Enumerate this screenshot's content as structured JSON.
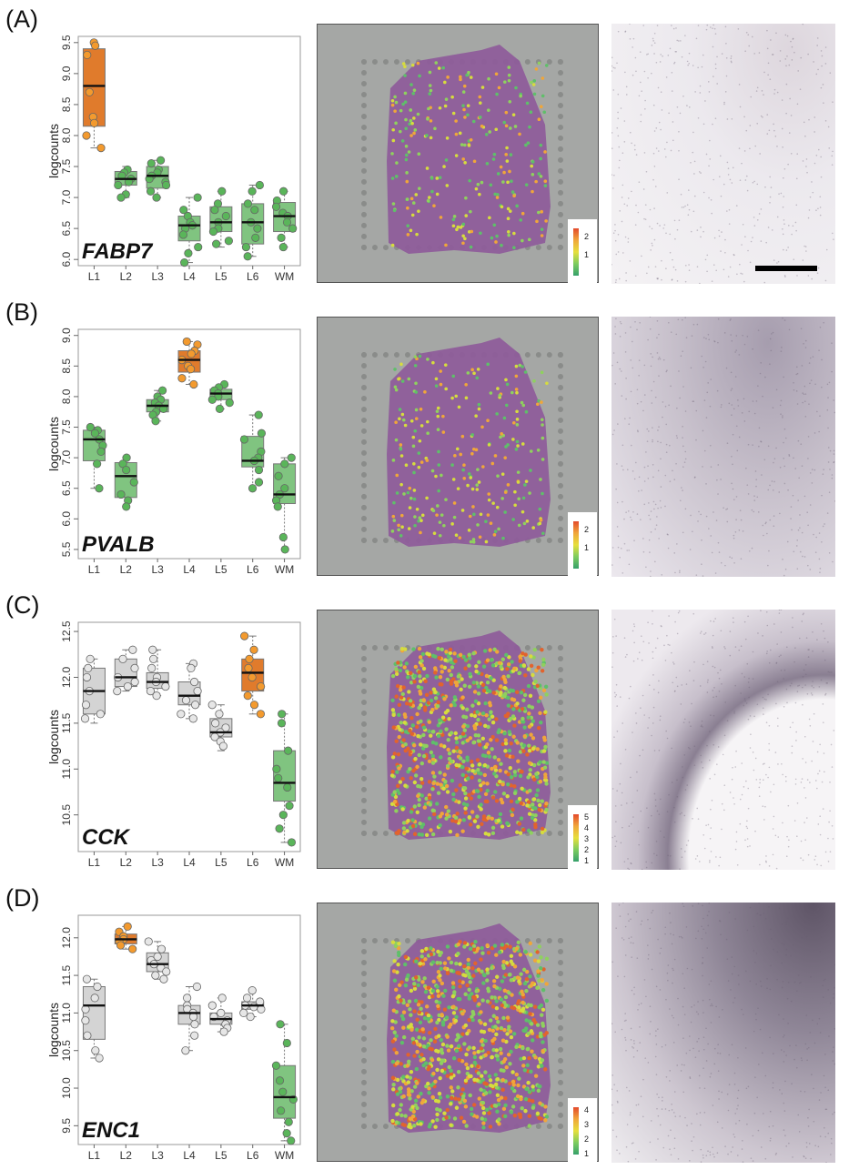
{
  "colors": {
    "orange": "#e07b2c",
    "orange_point": "#f39a2e",
    "green": "#80c480",
    "green_point": "#5ab55a",
    "grey": "#d4d4d4",
    "grey_point": "#e6e6e6"
  },
  "panels": [
    {
      "label": "(A)",
      "gene": "FABP7",
      "legend_ticks": [
        "2",
        "1"
      ],
      "histology": "light",
      "scale_bar": true
    },
    {
      "label": "(B)",
      "gene": "PVALB",
      "legend_ticks": [
        "2",
        "1"
      ],
      "histology": "mid",
      "scale_bar": false
    },
    {
      "label": "(C)",
      "gene": "CCK",
      "legend_ticks": [
        "5",
        "4",
        "3",
        "2",
        "1"
      ],
      "histology": "arc",
      "scale_bar": false
    },
    {
      "label": "(D)",
      "gene": "ENC1",
      "legend_ticks": [
        "4",
        "3",
        "2",
        "1"
      ],
      "histology": "dense",
      "scale_bar": false
    }
  ],
  "chart_data": [
    {
      "type": "box",
      "gene": "FABP7",
      "ylabel": "logcounts",
      "categories": [
        "L1",
        "L2",
        "L3",
        "L4",
        "L5",
        "L6",
        "WM"
      ],
      "yticks": [
        "6.0",
        "6.5",
        "7.0",
        "7.5",
        "8.0",
        "8.5",
        "9.0",
        "9.5"
      ],
      "ylim": [
        5.9,
        9.6
      ],
      "boxes": [
        {
          "q1": 8.15,
          "median": 8.8,
          "q3": 9.4,
          "lo": 7.8,
          "hi": 9.5,
          "fill": "orange",
          "points": [
            9.5,
            9.45,
            9.3,
            8.7,
            8.3,
            8.2,
            8.0,
            7.8
          ]
        },
        {
          "q1": 7.2,
          "median": 7.3,
          "q3": 7.42,
          "lo": 7.0,
          "hi": 7.5,
          "fill": "green",
          "points": [
            7.45,
            7.4,
            7.35,
            7.3,
            7.25,
            7.2,
            7.05,
            7.0
          ]
        },
        {
          "q1": 7.15,
          "median": 7.35,
          "q3": 7.5,
          "lo": 7.0,
          "hi": 7.6,
          "fill": "green",
          "points": [
            7.6,
            7.55,
            7.45,
            7.4,
            7.35,
            7.3,
            7.25,
            7.2,
            7.1,
            7.0
          ]
        },
        {
          "q1": 6.3,
          "median": 6.55,
          "q3": 6.7,
          "lo": 5.95,
          "hi": 7.0,
          "fill": "green",
          "points": [
            7.0,
            6.8,
            6.7,
            6.6,
            6.55,
            6.5,
            6.4,
            6.2,
            6.1,
            5.95
          ]
        },
        {
          "q1": 6.45,
          "median": 6.6,
          "q3": 6.85,
          "lo": 6.2,
          "hi": 7.1,
          "fill": "green",
          "points": [
            7.1,
            6.9,
            6.8,
            6.7,
            6.6,
            6.5,
            6.45,
            6.3,
            6.25
          ]
        },
        {
          "q1": 6.25,
          "median": 6.6,
          "q3": 6.9,
          "lo": 6.05,
          "hi": 7.2,
          "fill": "green",
          "points": [
            7.2,
            7.1,
            6.9,
            6.8,
            6.6,
            6.5,
            6.35,
            6.2,
            6.05
          ]
        },
        {
          "q1": 6.45,
          "median": 6.7,
          "q3": 6.92,
          "lo": 6.2,
          "hi": 7.1,
          "fill": "green",
          "points": [
            7.1,
            6.95,
            6.85,
            6.75,
            6.7,
            6.6,
            6.5,
            6.35,
            6.2
          ]
        }
      ]
    },
    {
      "type": "box",
      "gene": "PVALB",
      "ylabel": "logcounts",
      "categories": [
        "L1",
        "L2",
        "L3",
        "L4",
        "L5",
        "L6",
        "WM"
      ],
      "yticks": [
        "5.5",
        "6.0",
        "6.5",
        "7.0",
        "7.5",
        "8.0",
        "8.5",
        "9.0"
      ],
      "ylim": [
        5.35,
        9.1
      ],
      "boxes": [
        {
          "q1": 6.95,
          "median": 7.3,
          "q3": 7.45,
          "lo": 6.5,
          "hi": 7.5,
          "fill": "green",
          "points": [
            7.5,
            7.45,
            7.4,
            7.3,
            7.2,
            7.1,
            6.9,
            6.5
          ]
        },
        {
          "q1": 6.35,
          "median": 6.7,
          "q3": 6.92,
          "lo": 6.2,
          "hi": 7.0,
          "fill": "green",
          "points": [
            7.0,
            6.9,
            6.8,
            6.6,
            6.4,
            6.3,
            6.2
          ]
        },
        {
          "q1": 7.75,
          "median": 7.85,
          "q3": 7.95,
          "lo": 7.6,
          "hi": 8.1,
          "fill": "green",
          "points": [
            8.1,
            8.0,
            7.95,
            7.9,
            7.85,
            7.8,
            7.75,
            7.7,
            7.6
          ]
        },
        {
          "q1": 8.4,
          "median": 8.6,
          "q3": 8.75,
          "lo": 8.2,
          "hi": 8.9,
          "fill": "orange",
          "points": [
            8.9,
            8.85,
            8.75,
            8.7,
            8.6,
            8.5,
            8.45,
            8.3,
            8.2
          ]
        },
        {
          "q1": 7.95,
          "median": 8.05,
          "q3": 8.12,
          "lo": 7.8,
          "hi": 8.2,
          "fill": "green",
          "points": [
            8.2,
            8.15,
            8.1,
            8.05,
            8.0,
            7.95,
            7.9,
            7.8
          ]
        },
        {
          "q1": 6.85,
          "median": 6.95,
          "q3": 7.35,
          "lo": 6.5,
          "hi": 7.7,
          "fill": "green",
          "points": [
            7.7,
            7.4,
            7.3,
            7.1,
            7.0,
            6.95,
            6.8,
            6.6,
            6.5
          ]
        },
        {
          "q1": 6.25,
          "median": 6.4,
          "q3": 6.9,
          "lo": 5.5,
          "hi": 7.0,
          "fill": "green",
          "points": [
            7.0,
            6.9,
            6.7,
            6.5,
            6.4,
            6.3,
            6.2,
            5.7,
            5.5
          ]
        }
      ]
    },
    {
      "type": "box",
      "gene": "CCK",
      "ylabel": "logcounts",
      "categories": [
        "L1",
        "L2",
        "L3",
        "L4",
        "L5",
        "L6",
        "WM"
      ],
      "yticks": [
        "10.5",
        "11.0",
        "11.5",
        "12.0",
        "12.5"
      ],
      "ylim": [
        10.1,
        12.6
      ],
      "boxes": [
        {
          "q1": 11.6,
          "median": 11.85,
          "q3": 12.1,
          "lo": 11.5,
          "hi": 12.2,
          "fill": "grey",
          "points": [
            12.2,
            12.1,
            12.0,
            11.85,
            11.7,
            11.6,
            11.55
          ]
        },
        {
          "q1": 11.9,
          "median": 12.0,
          "q3": 12.2,
          "lo": 11.85,
          "hi": 12.3,
          "fill": "grey",
          "points": [
            12.3,
            12.2,
            12.1,
            12.0,
            11.95,
            11.9,
            11.85
          ]
        },
        {
          "q1": 11.88,
          "median": 11.95,
          "q3": 12.05,
          "lo": 11.8,
          "hi": 12.3,
          "fill": "grey",
          "points": [
            12.3,
            12.2,
            12.1,
            12.0,
            11.95,
            11.9,
            11.85,
            11.8
          ]
        },
        {
          "q1": 11.7,
          "median": 11.8,
          "q3": 11.95,
          "lo": 11.55,
          "hi": 12.15,
          "fill": "grey",
          "points": [
            12.15,
            12.1,
            11.95,
            11.85,
            11.75,
            11.7,
            11.6,
            11.55
          ]
        },
        {
          "q1": 11.35,
          "median": 11.4,
          "q3": 11.55,
          "lo": 11.2,
          "hi": 11.7,
          "fill": "grey",
          "points": [
            11.7,
            11.6,
            11.5,
            11.45,
            11.4,
            11.35,
            11.3,
            11.25
          ]
        },
        {
          "q1": 11.85,
          "median": 12.05,
          "q3": 12.2,
          "lo": 11.6,
          "hi": 12.45,
          "fill": "orange",
          "points": [
            12.45,
            12.3,
            12.2,
            12.1,
            12.0,
            11.9,
            11.8,
            11.7,
            11.6
          ]
        },
        {
          "q1": 10.65,
          "median": 10.85,
          "q3": 11.2,
          "lo": 10.2,
          "hi": 11.6,
          "fill": "green",
          "points": [
            11.6,
            11.5,
            11.2,
            11.0,
            10.9,
            10.8,
            10.6,
            10.5,
            10.35,
            10.2
          ]
        }
      ]
    },
    {
      "type": "box",
      "gene": "ENC1",
      "ylabel": "logcounts",
      "categories": [
        "L1",
        "L2",
        "L3",
        "L4",
        "L5",
        "L6",
        "WM"
      ],
      "yticks": [
        "9.5",
        "10.0",
        "10.5",
        "11.0",
        "11.5",
        "12.0"
      ],
      "ylim": [
        9.25,
        12.3
      ],
      "boxes": [
        {
          "q1": 10.65,
          "median": 11.1,
          "q3": 11.35,
          "lo": 10.4,
          "hi": 11.45,
          "fill": "grey",
          "points": [
            11.45,
            11.35,
            11.2,
            11.05,
            10.9,
            10.7,
            10.5,
            10.4
          ]
        },
        {
          "q1": 11.92,
          "median": 11.98,
          "q3": 12.05,
          "lo": 11.85,
          "hi": 12.15,
          "fill": "orange",
          "points": [
            12.15,
            12.08,
            12.02,
            11.98,
            11.95,
            11.9,
            11.85
          ]
        },
        {
          "q1": 11.55,
          "median": 11.65,
          "q3": 11.8,
          "lo": 11.45,
          "hi": 11.95,
          "fill": "grey",
          "points": [
            11.95,
            11.85,
            11.75,
            11.7,
            11.65,
            11.6,
            11.55,
            11.5,
            11.45
          ]
        },
        {
          "q1": 10.85,
          "median": 11.0,
          "q3": 11.1,
          "lo": 10.5,
          "hi": 11.35,
          "fill": "grey",
          "points": [
            11.35,
            11.2,
            11.1,
            11.05,
            11.0,
            10.95,
            10.85,
            10.7,
            10.5
          ]
        },
        {
          "q1": 10.85,
          "median": 10.92,
          "q3": 11.0,
          "lo": 10.75,
          "hi": 11.2,
          "fill": "grey",
          "points": [
            11.2,
            11.1,
            11.0,
            10.95,
            10.9,
            10.85,
            10.8,
            10.75
          ]
        },
        {
          "q1": 11.05,
          "median": 11.1,
          "q3": 11.15,
          "lo": 10.95,
          "hi": 11.3,
          "fill": "grey",
          "points": [
            11.3,
            11.2,
            11.15,
            11.1,
            11.08,
            11.05,
            11.0,
            10.95
          ]
        },
        {
          "q1": 9.6,
          "median": 9.88,
          "q3": 10.3,
          "lo": 9.3,
          "hi": 10.85,
          "fill": "green",
          "points": [
            10.85,
            10.6,
            10.3,
            10.1,
            9.95,
            9.85,
            9.7,
            9.55,
            9.4,
            9.3
          ]
        }
      ]
    }
  ]
}
